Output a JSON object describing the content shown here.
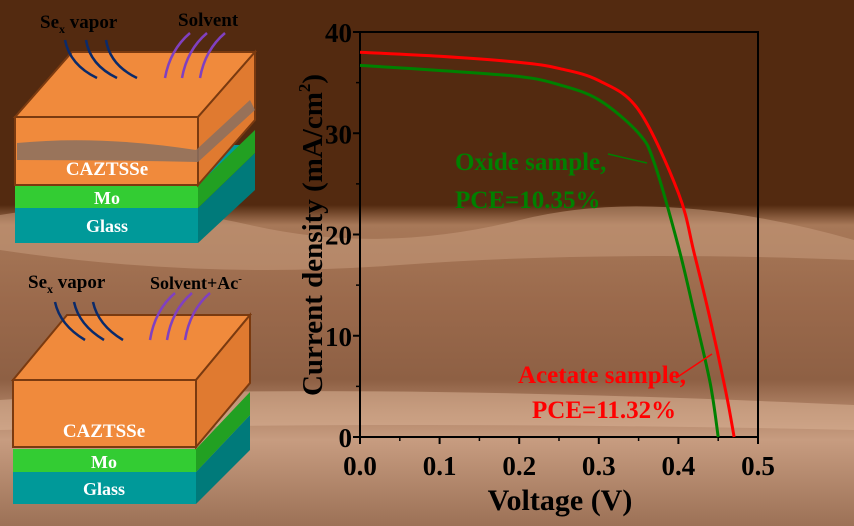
{
  "diagram": {
    "top": {
      "vapor_label": "Se",
      "vapor_sub": "x",
      "vapor_suffix": " vapor",
      "out_label": "Solvent",
      "film": "CAZTSSe",
      "mo": "Mo",
      "glass": "Glass"
    },
    "bottom": {
      "vapor_label": "Se",
      "vapor_sub": "x",
      "vapor_suffix": " vapor",
      "out_label": "Solvent+Ac",
      "out_sup": "-",
      "film": "CAZTSSe",
      "mo": "Mo",
      "glass": "Glass"
    },
    "colors": {
      "film": "#f08a3c",
      "film_border": "#7a3a10",
      "mo": "#33cc33",
      "glass": "#009999",
      "vapor_arrow": "#0a2a6a",
      "solvent_arrow": "#8040c0"
    }
  },
  "chart_data": {
    "type": "line",
    "xlabel": "Voltage (V)",
    "ylabel": "Current density (mA/cm",
    "ylabel_sup": "2",
    "ylabel_end": ")",
    "xlim": [
      0,
      0.5
    ],
    "ylim": [
      0,
      40
    ],
    "xticks": [
      "0.0",
      "0.1",
      "0.2",
      "0.3",
      "0.4",
      "0.5"
    ],
    "yticks": [
      "0",
      "10",
      "20",
      "30",
      "40"
    ],
    "grid": false,
    "series": [
      {
        "name": "Oxide sample,",
        "pce": "PCE=10.35%",
        "color": "#008000",
        "x": [
          0,
          0.1,
          0.2,
          0.25,
          0.3,
          0.35,
          0.37,
          0.4,
          0.42,
          0.44,
          0.45
        ],
        "y": [
          36.7,
          36.2,
          35.6,
          34.8,
          33.3,
          30.0,
          27.0,
          18.8,
          12.2,
          5.3,
          0
        ]
      },
      {
        "name": "Acetate sample,",
        "pce": "PCE=11.32%",
        "color": "#ff0000",
        "x": [
          0,
          0.1,
          0.2,
          0.25,
          0.3,
          0.35,
          0.4,
          0.42,
          0.44,
          0.46,
          0.47
        ],
        "y": [
          38.0,
          37.6,
          37.0,
          36.4,
          35.2,
          32.3,
          24.1,
          18.1,
          11.6,
          4.3,
          0
        ]
      }
    ]
  }
}
